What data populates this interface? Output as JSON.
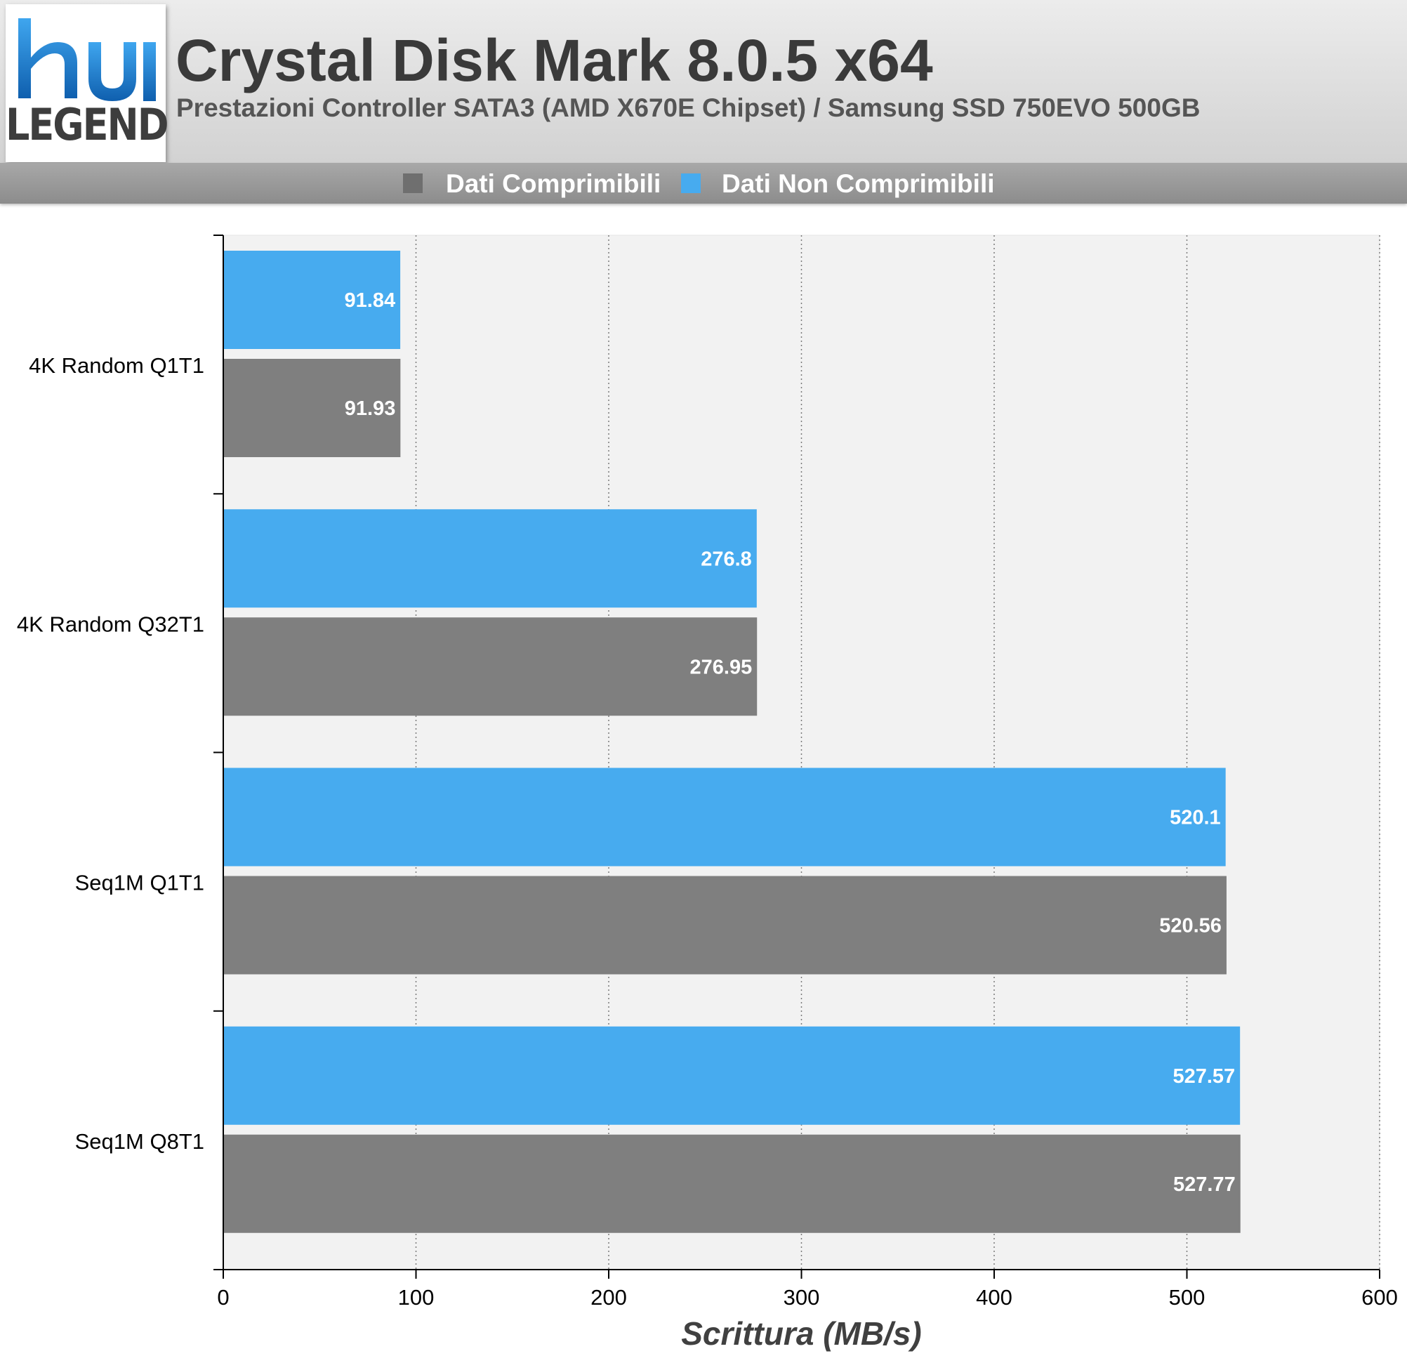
{
  "header": {
    "title": "Crystal Disk Mark 8.0.5 x64",
    "subtitle": "Prestazioni Controller SATA3 (AMD X670E Chipset) / Samsung SSD 750EVO 500GB",
    "logo_text": "LEGEND",
    "logo_monogram": "hu"
  },
  "colors": {
    "compressible": "#7f7f7f",
    "non_compressible": "#47abef",
    "plot_background": "#f2f2f2",
    "logo_blue": "#1a86d6"
  },
  "chart_data": {
    "type": "bar",
    "orientation": "horizontal",
    "categories": [
      "4K Random Q1T1",
      "4K Random Q32T1",
      "Seq1M Q1T1",
      "Seq1M Q8T1"
    ],
    "series": [
      {
        "name": "Dati Non Comprimibili",
        "color": "#47abef",
        "values": [
          91.84,
          276.8,
          520.1,
          527.57
        ],
        "labels": [
          "91.84",
          "276.8",
          "520.1",
          "527.57"
        ]
      },
      {
        "name": "Dati Comprimibili",
        "color": "#7f7f7f",
        "values": [
          91.93,
          276.95,
          520.56,
          527.77
        ],
        "labels": [
          "91.93",
          "276.95",
          "520.56",
          "527.77"
        ]
      }
    ],
    "legend": [
      "Dati Comprimibili",
      "Dati Non Comprimibili"
    ],
    "legend_position": "top",
    "xlabel": "Scrittura (MB/s)",
    "xlim": [
      0,
      600
    ],
    "xticks": [
      0,
      100,
      200,
      300,
      400,
      500,
      600
    ],
    "grid": "vertical dotted"
  }
}
